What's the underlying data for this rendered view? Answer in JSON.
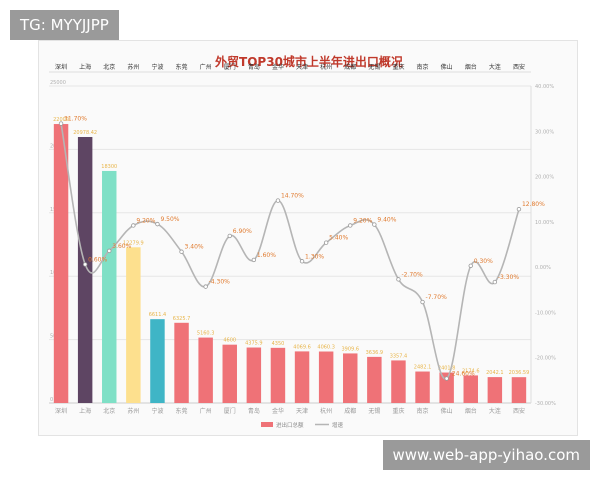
{
  "watermarks": {
    "top_left": "TG: MYYJJPP",
    "bottom_right": "www.web-app-yihao.com"
  },
  "colors": {
    "line": "#b5b5b5",
    "value_label": "#e8b54a",
    "growth_label": "#e07a2e",
    "title": "#c0392b"
  },
  "chart_data": {
    "type": "bar",
    "title": "外贸TOP30城市上半年进出口概况",
    "categories": [
      "深圳",
      "上海",
      "北京",
      "苏州",
      "宁波",
      "东莞",
      "广州",
      "厦门",
      "青岛",
      "金华",
      "天津",
      "杭州",
      "成都",
      "无锡",
      "重庆",
      "南京",
      "佛山",
      "烟台",
      "大连",
      "西安"
    ],
    "y_left": {
      "ticks": [
        "0",
        "5000",
        "10000",
        "15000",
        "20000",
        "25000"
      ],
      "ylim": [
        0,
        25000
      ]
    },
    "y_right": {
      "ticks": [
        "-30.00%",
        "-20.00%",
        "-10.00%",
        "0.00%",
        "10.00%",
        "20.00%",
        "30.00%",
        "40.00%"
      ],
      "ylim": [
        -30,
        40
      ]
    },
    "series": [
      {
        "name": "进出口总额",
        "type": "bar",
        "values": [
          22000,
          20978.42,
          18300,
          12279.9,
          6611.4,
          6325.7,
          5160.3,
          4600,
          4375.9,
          4350,
          4069.6,
          4060.3,
          3909.6,
          3636.9,
          3357.4,
          2482.1,
          2401.8,
          2174.6,
          2042.1,
          2036.59
        ],
        "labels": [
          "22000",
          "20978.42",
          "18300",
          "12279.9",
          "6611.4",
          "6325.7",
          "5160.3",
          "4600",
          "4375.9",
          "4350",
          "4069.6",
          "4060.3",
          "3909.6",
          "3636.9",
          "3357.4",
          "2482.1",
          "2401.8",
          "2174.6",
          "2042.1",
          "2036.59"
        ],
        "colors": [
          "#ef7277",
          "#5e4563",
          "#7fe0c6",
          "#fde08e",
          "#3fb5c6",
          "#ef7277",
          "#ef7277",
          "#ef7277",
          "#ef7277",
          "#ef7277",
          "#ef7277",
          "#ef7277",
          "#ef7277",
          "#ef7277",
          "#ef7277",
          "#ef7277",
          "#ef7277",
          "#ef7277",
          "#ef7277",
          "#ef7277"
        ]
      },
      {
        "name": "增速",
        "type": "line",
        "values": [
          31.7,
          0.6,
          3.6,
          9.2,
          9.5,
          3.4,
          -4.3,
          6.9,
          1.6,
          14.7,
          1.3,
          5.4,
          9.2,
          9.4,
          -2.7,
          -7.7,
          -24.6,
          0.3,
          -3.3,
          12.8
        ],
        "labels": [
          "31.70%",
          "0.60%",
          "3.60%",
          "9.20%",
          "9.50%",
          "3.40%",
          "-4.30%",
          "6.90%",
          "1.60%",
          "14.70%",
          "1.30%",
          "5.40%",
          "9.20%",
          "9.40%",
          "-2.70%",
          "-7.70%",
          "-24.60%",
          "0.30%",
          "-3.30%",
          "12.80%"
        ]
      }
    ],
    "legend": [
      "进出口总额",
      "增速"
    ],
    "legend_position": "bottom",
    "grid": true
  }
}
